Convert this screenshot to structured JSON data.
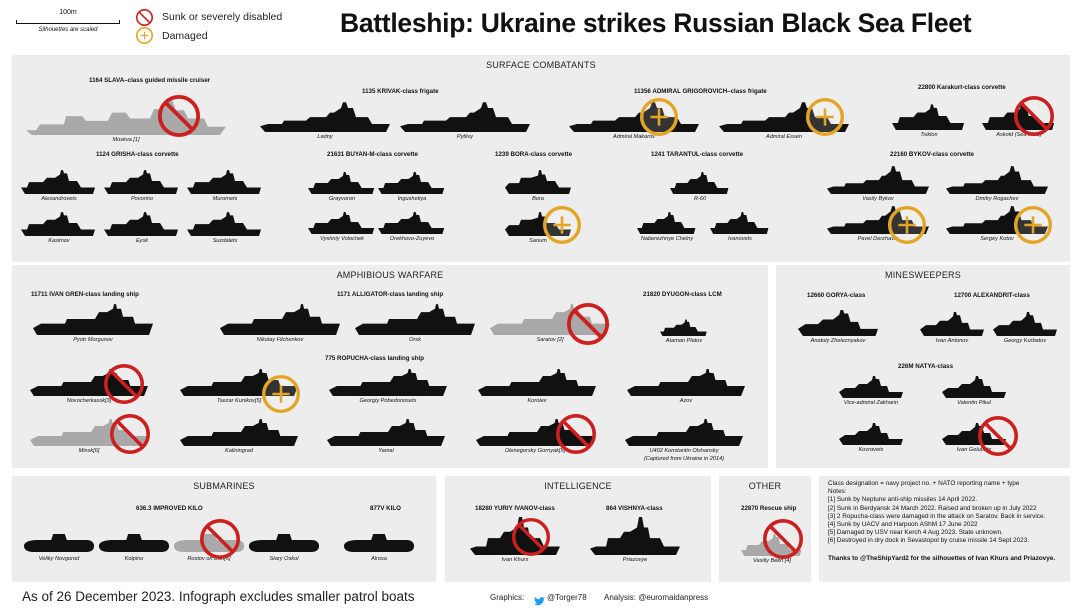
{
  "title": "Battleship: Ukraine strikes Russian Black Sea Fleet",
  "scale": {
    "value": "100m",
    "note": "Silhouettes are scaled"
  },
  "legend": {
    "sunk": "Sunk or severely disabled",
    "damaged": "Damaged"
  },
  "colors": {
    "sunk": "#cc1f1f",
    "damaged": "#e3a525",
    "intact_ship": "#111111",
    "lost_ship": "#a9a9a9",
    "panel": "#ededed"
  },
  "sections": {
    "surface": {
      "title": "SURFACE COMBATANTS",
      "classes": {
        "slava": "1164 SLAVA–class guided missile cruiser",
        "krivak": "1135 KRIVAK-class frigate",
        "grigorovich": "11356 ADMIRAL GRIGOROVICH–class frigate",
        "karakurt": "22800 Karakurt-class corvette",
        "grisha": "1124 GRISHA-class corvette",
        "buyan": "21631 BUYAN-M-class corvette",
        "bora": "1239 BORA-class corvette",
        "tarantul": "1241 TARANTUL-class corvette",
        "bykov": "22160 BYKOV-class corvette"
      },
      "ships": {
        "moskva": "Moskva [1]",
        "ladny": "Ladny",
        "pytlivy": "Pytlivy",
        "makarov": "Admiral Makarov",
        "essen": "Admiral Essen",
        "tsiklon": "Tsiklon",
        "askold": "Askold (Sea trials)",
        "alexandrovets": "Alexandrovets",
        "povorino": "Povorino",
        "muromets": "Muromets",
        "kasimov": "Kasimov",
        "eysk": "Eysk",
        "suzdalets": "Suzdalets",
        "grayvoron": "Grayvoron",
        "ingushetiya": "Ingushetiya",
        "vyshniy": "Vyshniy Volochek",
        "orekhovo": "Orekhovo-Zuyevo",
        "bora": "Bora",
        "sanum": "Sanum",
        "r60": "R-60",
        "chelny": "Naberezhnye Chelny",
        "ivanovets": "Ivanovets",
        "bykov": "Vasily Bykov",
        "rogachev": "Dmitry Rogachev",
        "derzhavin": "Pavel Derzhavin",
        "kotov": "Sergey Kotov"
      }
    },
    "amphibious": {
      "title": "AMPHIBIOUS WARFARE",
      "classes": {
        "gren": "11711 IVAN GREN-class landing ship",
        "alligator": "1171 ALLIGATOR-class landing ship",
        "dyugon": "21820 DYUGON-class LCM",
        "ropucha": "775 ROPUCHA-class landing ship"
      },
      "ships": {
        "morgunov": "Pyotr Morgunov",
        "filchenkov": "Nikolay Filchenkov",
        "orsk": "Orsk",
        "saratov": "Saratov [2]",
        "platov": "Ataman Platov",
        "novocherkassk": "Novocherkassk[3]",
        "kunikov": "Tsezar Kunikov[5]",
        "pobedonosets": "Georgiy Pobedonosets",
        "korolev": "Korolev",
        "azov": "Azov",
        "minsk": "Minsk[6]",
        "kaliningrad": "Kaliningrad",
        "yamal": "Yamal",
        "gornyak": "Olenegorsky Gornyak[5]",
        "olshansky": "U402 Konstantin Olshansky",
        "olshansky_note": "(Captured from Ukraine in 2014)"
      }
    },
    "minesweepers": {
      "title": "MINESWEEPERS",
      "classes": {
        "gorya": "12660 GORYA-class",
        "alexandrit": "12700 ALEXANDRIT-class",
        "natya": "226M NATYA-class"
      },
      "ships": {
        "zheleznyakov": "Anatoly Zheleznyakov",
        "antonov": "Ivan Antonov",
        "kurbatov": "Georgy Kurbatov",
        "zakharin": "Vice-admiral Zakharin",
        "pikul": "Valentin Pikul",
        "kovrovets": "Kovrovets",
        "golubets": "Ivan Golubets"
      }
    },
    "submarines": {
      "title": "SUBMARINES",
      "classes": {
        "kilo636": "636.3 IMPROVED KILO",
        "kilo877": "877V KILO"
      },
      "ships": {
        "novgorod": "Veliky Novgorod",
        "kolpino": "Kolpino",
        "rostov": "Rostov on Don[6]",
        "oskol": "Stary Oskol",
        "alrosa": "Alrosa"
      }
    },
    "intelligence": {
      "title": "INTELLIGENCE",
      "classes": {
        "yurity": "18280 YURIY IVANOV-class",
        "vishnya": "864 VISHNYA-class"
      },
      "ships": {
        "khurs": "Ivan Khurs",
        "priazovye": "Priazovye"
      }
    },
    "other": {
      "title": "OTHER",
      "classes": {
        "rescue": "22870 Rescue ship"
      },
      "ships": {
        "bekh": "Vasiliy Bekh [4]"
      }
    }
  },
  "notes": {
    "lines": [
      "Class designation = navy project no. + NATO reporting name + type",
      "Notes:",
      "[1] Sunk by Neptune anti-ship missiles 14 April 2022.",
      "[2] Sunk in Berdyansk 24 March 2022. Raised and broken up in July 2022",
      "[3] 2 Ropucha-class were damaged in the attack on Saratov. Back in service.",
      "[4] Sunk by UACV and Harpoon AShM 17 June 2022",
      "[5] Damaged by USV near Kerch 4 Aug 2023. State unknown.",
      "[6] Destroyed in dry dock in Sevastopol by cruise missile 14 Sept 2023."
    ],
    "thanks": "Thanks to @TheShipYard2 for the silhouettes of Ivan Khurs and Priazovye."
  },
  "footer": {
    "date": "As of 26 December 2023. Infograph excludes smaller patrol boats",
    "graphics_label": "Graphics:",
    "graphics_handle": "@Torger78",
    "analysis": "Analysis: @euromaidanpress"
  }
}
